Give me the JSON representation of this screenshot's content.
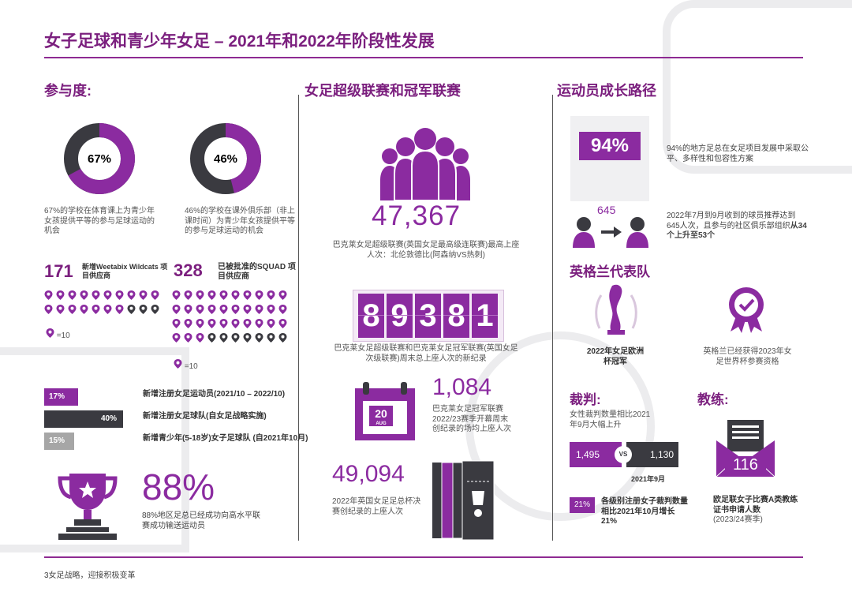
{
  "title": "女子足球和青少年女足 – 2021年和2022年阶段性发展",
  "participation": {
    "heading": "参与度:",
    "donut1": {
      "pct_label": "67%",
      "value": 0.67,
      "caption": "67%的学校在体育课上为青少年女孩提供平等的参与足球运动的机会"
    },
    "donut2": {
      "pct_label": "46%",
      "value": 0.46,
      "caption": "46%的学校在课外俱乐部（非上课时间）为青少年女孩提供平等的参与足球运动的机会"
    },
    "stat1": {
      "number": "171",
      "label": "新增Weetabix Wildcats 项目供应商",
      "legend": "=10"
    },
    "stat2": {
      "number": "328",
      "label": "已被批准的SQUAD 项目供应商",
      "legend": "=10"
    },
    "bars": [
      {
        "pct": "17%",
        "value": 0.17,
        "color": "#8b2ba0",
        "label": "新增注册女足运动员(2021/10 – 2022/10)"
      },
      {
        "pct": "40%",
        "value": 0.4,
        "color": "#3a3a40",
        "label": "新增注册女足球队(自女足战略实施)"
      },
      {
        "pct": "15%",
        "value": 0.15,
        "color": "#a6a6a6",
        "label": "新增青少年(5-18岁)女子足球队 (自2021年10月)"
      }
    ],
    "big_pct": "88%",
    "big_caption": "88%地区足总已经成功向高水平联赛成功输送运动员"
  },
  "league": {
    "heading": "女足超级联赛和冠军联赛",
    "attendance1": {
      "number": "47,367",
      "caption": "巴克莱女足超级联赛(英国女足最高级连联赛)最高上座人次：北伦敦德比(阿森纳VS热刺)"
    },
    "flip_digits": [
      "8",
      "9",
      "3",
      "8",
      "1"
    ],
    "flip_caption": "巴克莱女足超级联赛和巴克莱女足冠军联赛(英国女足次级联赛)周末总上座人次的新纪录",
    "calendar": {
      "day": "20",
      "month": "AUG"
    },
    "attendance2": {
      "number": "1,084",
      "caption": "巴克莱女足冠军联赛2022/23赛季开幕周末创纪录的场均上座人次"
    },
    "attendance3": {
      "number": "49,094",
      "caption": "2022年英国女足足总杯决赛创纪录的上座人次"
    }
  },
  "pathway": {
    "heading": "运动员成长路径",
    "pct94": "94%",
    "pct94_caption": "94%的地方足总在女足项目发展中采取公平、多样性和包容性方案",
    "num645": "645",
    "referral_caption_a": "2022年7月到9月收到的球员推荐达到645人次，且参与的社区俱乐部组织",
    "referral_caption_b": "从34个上升至53个",
    "england_heading": "英格兰代表队",
    "euro_caption": "2022年女足欧洲杯冠军",
    "wc_caption": "英格兰已经获得2023年女足世界杯参赛资格",
    "referees_heading": "裁判:",
    "referees_caption": "女性裁判数量相比2021年9月大幅上升",
    "ref_before": "1,495",
    "ref_vs": "VS",
    "ref_after": "1,130",
    "ref_date": "2021年9月",
    "ref_pct": "21%",
    "ref_pct_caption": "各级别注册女子裁判数量相比2021年10月增长21%",
    "coaches_heading": "教练:",
    "coach_number": "116",
    "coach_caption_a": "欧足联女子比赛A类教练证书申请人数",
    "coach_caption_b": "(2023/24赛季)"
  },
  "footer": "3女足战略，迎接积极变革",
  "colors": {
    "purple": "#8b2ba0",
    "dark": "#3a3a40",
    "grey": "#a6a6a6"
  }
}
